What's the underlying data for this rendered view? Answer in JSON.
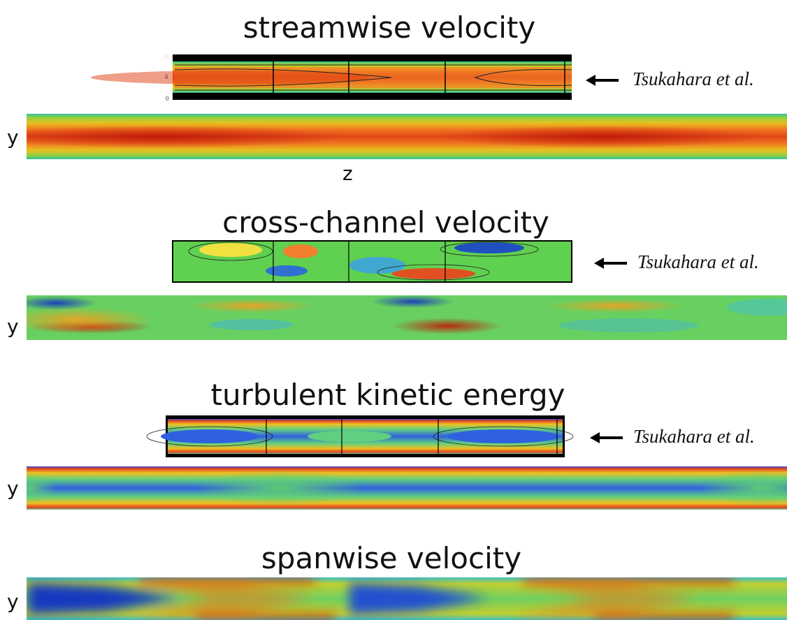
{
  "panels": [
    {
      "title": "streamwise velocity",
      "reference_label": "Tsukahara et al.",
      "axis_ticks": [
        "2δ",
        "δ",
        "0"
      ],
      "y_label": "y",
      "z_label": "z"
    },
    {
      "title": "cross-channel velocity",
      "reference_label": "Tsukahara et al.",
      "y_label": "y"
    },
    {
      "title": "turbulent kinetic energy",
      "reference_label": "Tsukahara et al.",
      "y_label": "y"
    },
    {
      "title": "spanwise velocity",
      "y_label": "y"
    }
  ]
}
